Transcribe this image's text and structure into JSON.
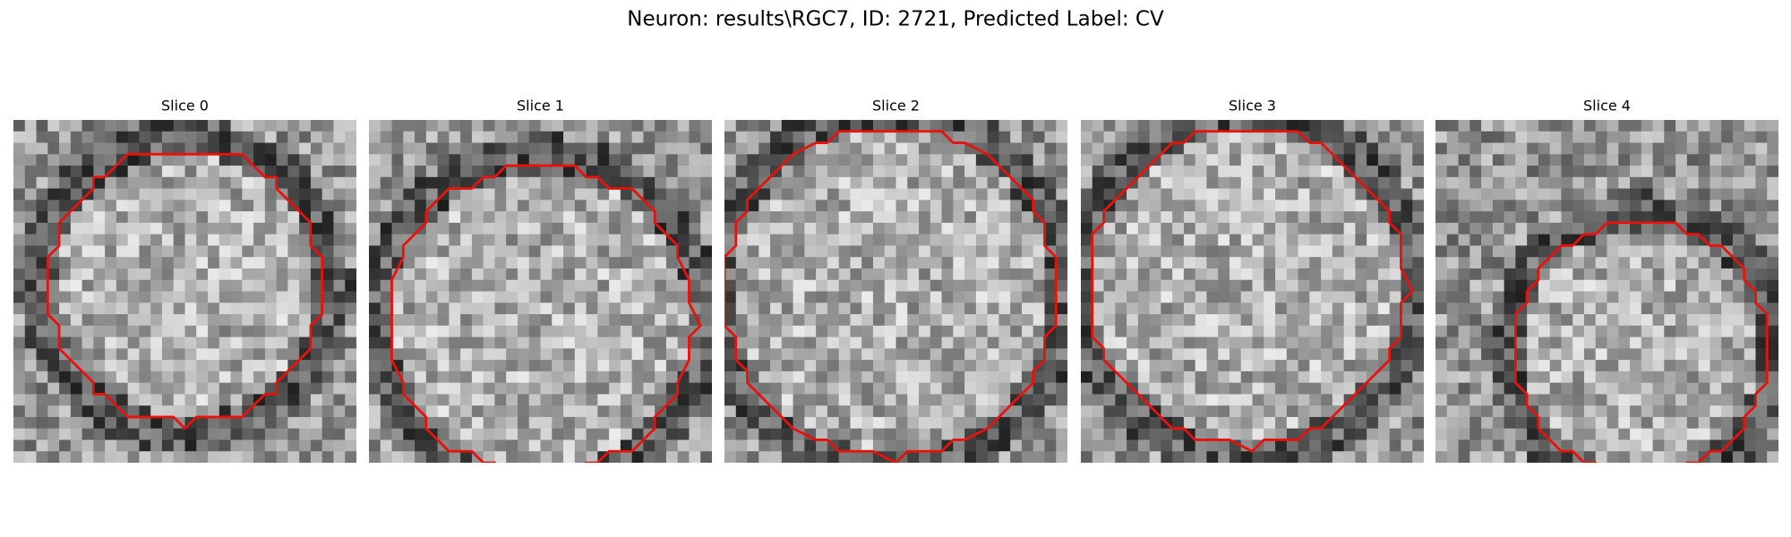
{
  "figure": {
    "title": "Neuron: results\\RGC7, ID: 2721, Predicted Label: CV",
    "panels": [
      {
        "title": "Slice 0"
      },
      {
        "title": "Slice 1"
      },
      {
        "title": "Slice 2"
      },
      {
        "title": "Slice 3"
      },
      {
        "title": "Slice 4"
      }
    ]
  }
}
